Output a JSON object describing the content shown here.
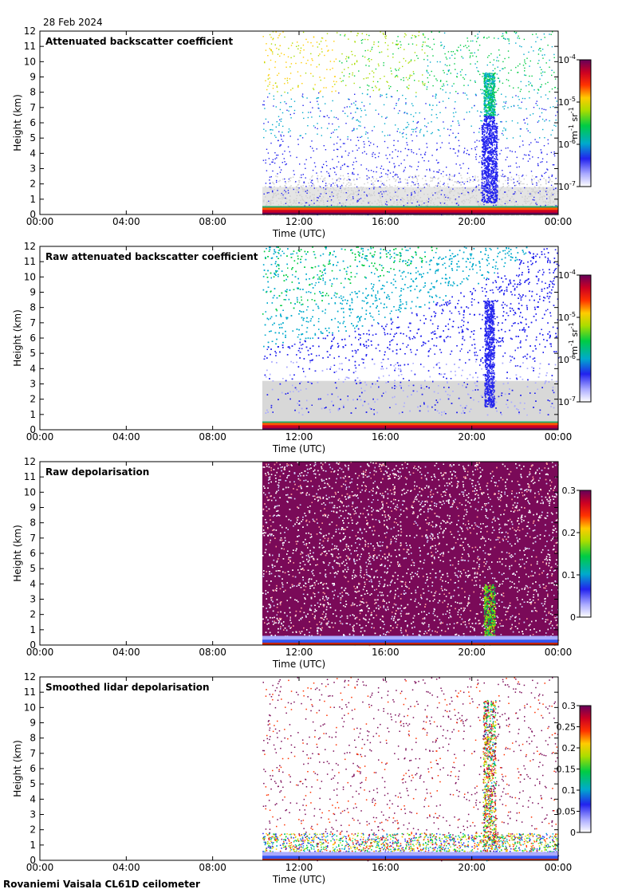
{
  "date_label": "28 Feb 2024",
  "footer": "Rovaniemi Vaisala CL61D ceilometer",
  "chart_data": [
    {
      "type": "heatmap",
      "title": "Attenuated backscatter coefficient",
      "xlabel": "Time (UTC)",
      "ylabel": "Height (km)",
      "xticks": [
        "00:00",
        "04:00",
        "08:00",
        "12:00",
        "16:00",
        "20:00",
        "00:00"
      ],
      "yticks": [
        "0",
        "1",
        "2",
        "3",
        "4",
        "5",
        "6",
        "7",
        "8",
        "9",
        "10",
        "11",
        "12"
      ],
      "xlim_hours": [
        0,
        24
      ],
      "ylim_km": [
        0,
        12
      ],
      "data_start_hour": 10.3,
      "colorbar": {
        "scale": "log",
        "ticks": [
          "10",
          "10",
          "10",
          "10"
        ],
        "exponents": [
          "-7",
          "-6",
          "-5",
          "-4"
        ],
        "unit": "m",
        "unit_exp": "-1",
        "unit2": "sr",
        "unit2_exp": "-1"
      },
      "style": "sparse"
    },
    {
      "type": "heatmap",
      "title": "Raw attenuated backscatter coefficient",
      "xlabel": "Time (UTC)",
      "ylabel": "Height (km)",
      "xticks": [
        "00:00",
        "04:00",
        "08:00",
        "12:00",
        "16:00",
        "20:00",
        "00:00"
      ],
      "yticks": [
        "0",
        "1",
        "2",
        "3",
        "4",
        "5",
        "6",
        "7",
        "8",
        "9",
        "10",
        "11",
        "12"
      ],
      "xlim_hours": [
        0,
        24
      ],
      "ylim_km": [
        0,
        12
      ],
      "data_start_hour": 10.3,
      "colorbar": {
        "scale": "log",
        "ticks": [
          "10",
          "10",
          "10",
          "10"
        ],
        "exponents": [
          "-7",
          "-6",
          "-5",
          "-4"
        ],
        "unit": "m",
        "unit_exp": "-1",
        "unit2": "sr",
        "unit2_exp": "-1"
      },
      "style": "dense"
    },
    {
      "type": "heatmap",
      "title": "Raw depolarisation",
      "xlabel": "Time (UTC)",
      "ylabel": "Height (km)",
      "xticks": [
        "00:00",
        "04:00",
        "08:00",
        "12:00",
        "16:00",
        "20:00",
        "00:00"
      ],
      "yticks": [
        "0",
        "1",
        "2",
        "3",
        "4",
        "5",
        "6",
        "7",
        "8",
        "9",
        "10",
        "11",
        "12"
      ],
      "xlim_hours": [
        0,
        24
      ],
      "ylim_km": [
        0,
        12
      ],
      "data_start_hour": 10.3,
      "colorbar": {
        "scale": "linear",
        "ticks": [
          "0",
          "0.1",
          "0.2",
          "0.3"
        ]
      },
      "style": "noise"
    },
    {
      "type": "heatmap",
      "title": "Smoothed lidar depolarisation",
      "xlabel": "Time (UTC)",
      "ylabel": "Height (km)",
      "xticks": [
        "00:00",
        "04:00",
        "08:00",
        "12:00",
        "16:00",
        "20:00",
        "00:00"
      ],
      "yticks": [
        "0",
        "1",
        "2",
        "3",
        "4",
        "5",
        "6",
        "7",
        "8",
        "9",
        "10",
        "11",
        "12"
      ],
      "xlim_hours": [
        0,
        24
      ],
      "ylim_km": [
        0,
        12
      ],
      "data_start_hour": 10.3,
      "colorbar": {
        "scale": "linear",
        "ticks": [
          "0",
          "0.05",
          "0.1",
          "0.15",
          "0.2",
          "0.25",
          "0.3"
        ]
      },
      "style": "smoothdepol"
    }
  ]
}
